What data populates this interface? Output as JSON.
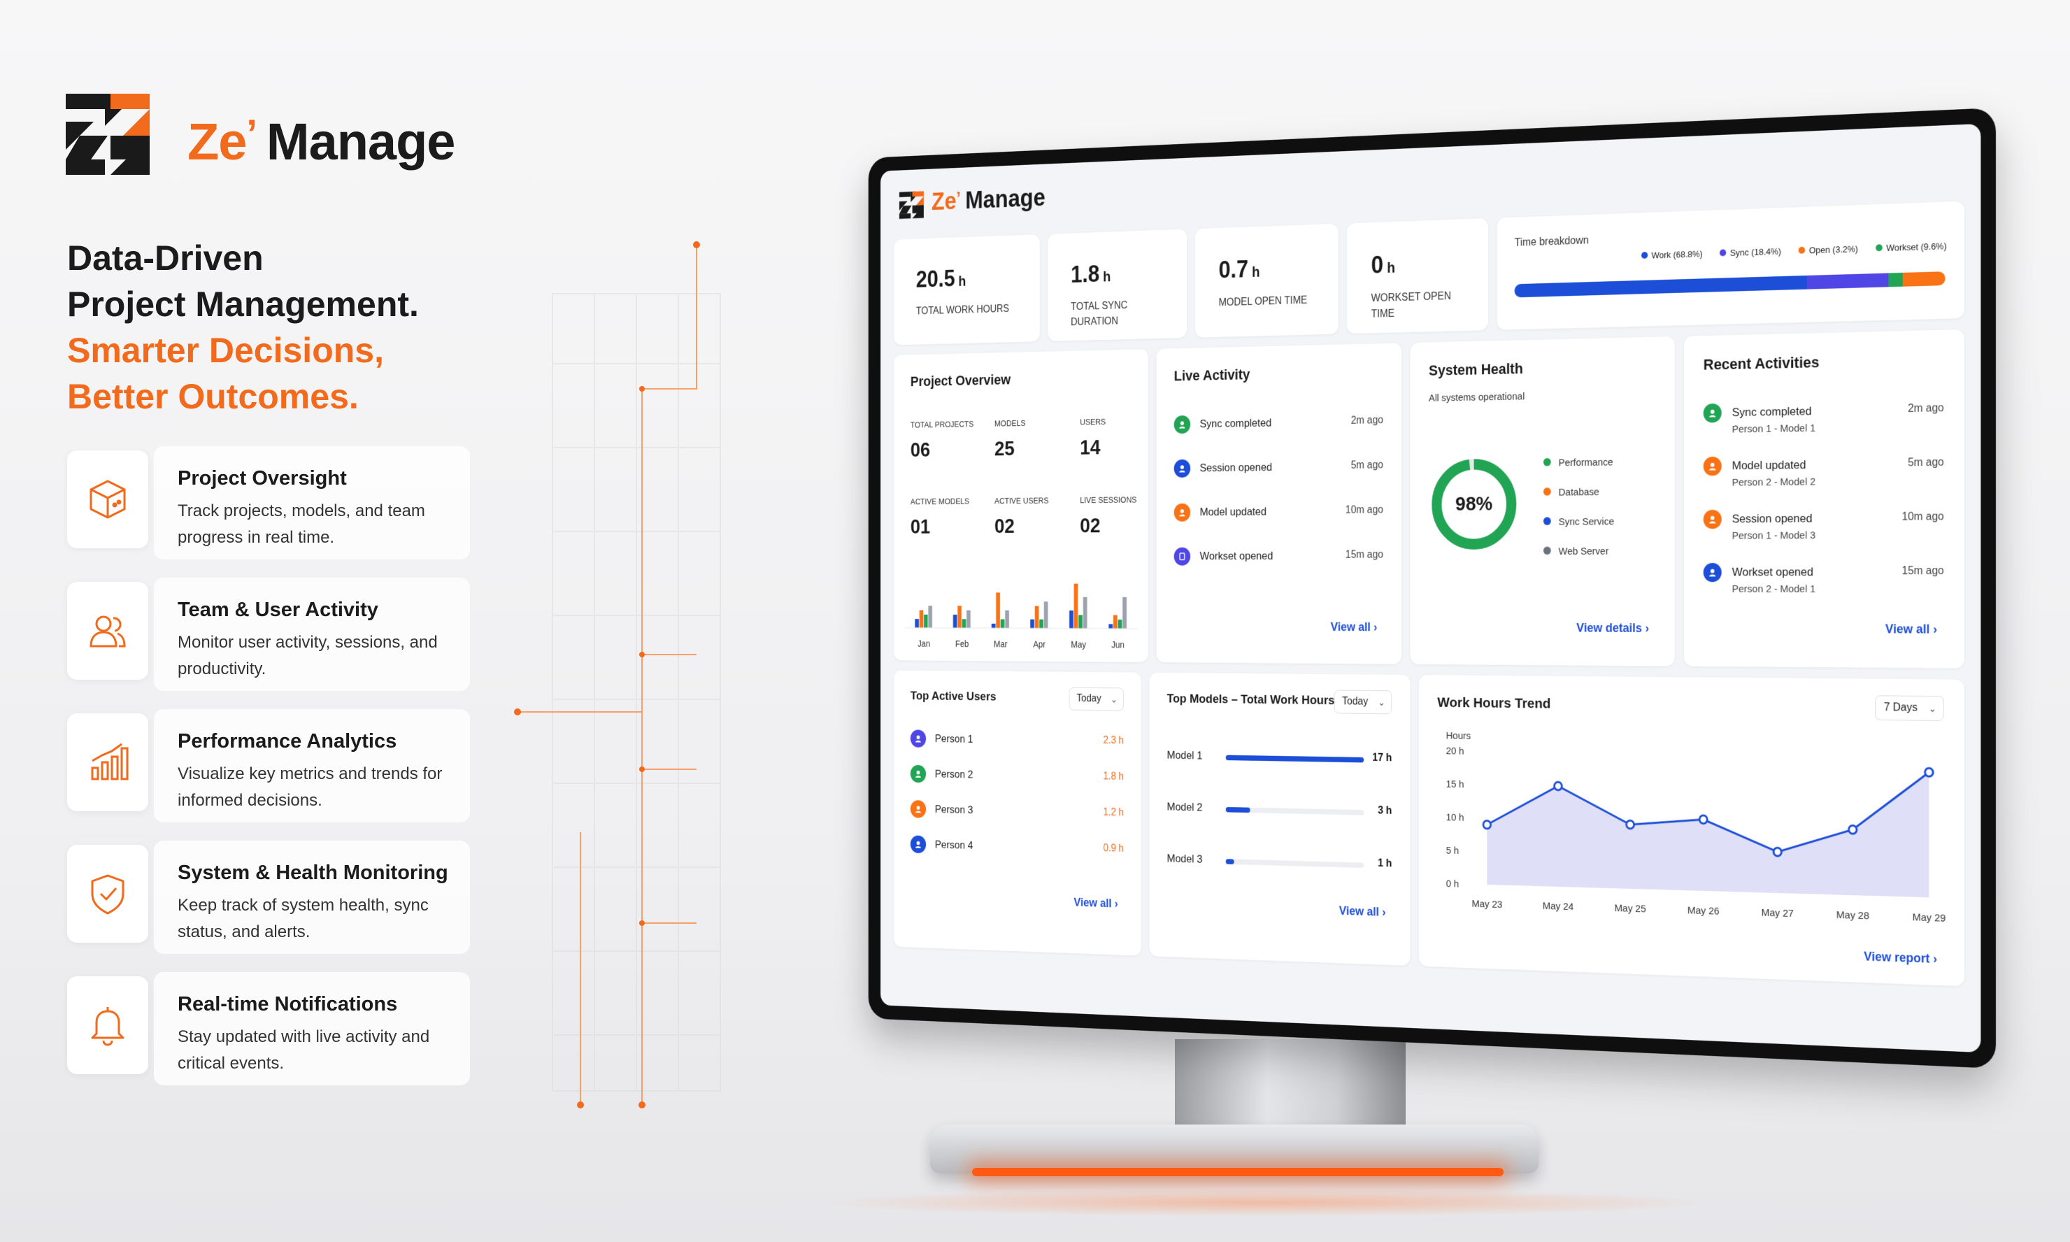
{
  "brand": {
    "ze": "Ze",
    "apostrophe": "’",
    "rest": "Manage",
    "accent": "#f26a1b"
  },
  "headline": {
    "line1": "Data-Driven",
    "line2": "Project Management.",
    "line3": "Smarter Decisions,",
    "line4": "Better Outcomes."
  },
  "features": [
    {
      "title": "Project Oversight",
      "desc": "Track projects, models, and team progress in real time.",
      "icon": "box-icon"
    },
    {
      "title": "Team & User Activity",
      "desc": "Monitor user activity, sessions, and productivity.",
      "icon": "users-icon"
    },
    {
      "title": "Performance Analytics",
      "desc": "Visualize key metrics and trends for informed decisions.",
      "icon": "bar-chart-icon"
    },
    {
      "title": "System & Health Monitoring",
      "desc": "Keep track of system health, sync status, and alerts.",
      "icon": "shield-check-icon"
    },
    {
      "title": "Real-time Notifications",
      "desc": "Stay updated with live activity and critical events.",
      "icon": "bell-icon"
    }
  ],
  "dashboard": {
    "stats": [
      {
        "value": "20.5",
        "unit": "h",
        "label": "Total Work Hours"
      },
      {
        "value": "1.8",
        "unit": "h",
        "label": "Total Sync Duration"
      },
      {
        "value": "0.7",
        "unit": "h",
        "label": "Model Open Time"
      },
      {
        "value": "0",
        "unit": "h",
        "label": "Workset Open Time"
      }
    ],
    "time_breakdown": {
      "title": "Time breakdown",
      "segments": [
        {
          "label": "Work (68.8%)",
          "pct": 68.8,
          "color": "#1d4ed8"
        },
        {
          "label": "Sync (18.4%)",
          "pct": 18.4,
          "color": "#4f46e5"
        },
        {
          "label": "Open (3.2%)",
          "pct": 3.2,
          "color": "#22a455"
        },
        {
          "label": "Workset (9.6%)",
          "pct": 9.6,
          "color": "#f97316"
        }
      ]
    },
    "project_overview": {
      "title": "Project Overview",
      "metrics": [
        {
          "label": "Total Projects",
          "value": "06"
        },
        {
          "label": "Models",
          "value": "25"
        },
        {
          "label": "Users",
          "value": "14"
        },
        {
          "label": "Active Models",
          "value": "01"
        },
        {
          "label": "Active Users",
          "value": "02"
        },
        {
          "label": "Live Sessions",
          "value": "02"
        }
      ],
      "chart_data": {
        "type": "bar",
        "categories": [
          "Jan",
          "Feb",
          "Mar",
          "Apr",
          "May",
          "Jun"
        ],
        "series": [
          {
            "color": "#1d4ed8",
            "values": [
              2,
              3,
              1,
              2,
              4,
              1
            ]
          },
          {
            "color": "#f97316",
            "values": [
              4,
              5,
              8,
              5,
              10,
              3
            ]
          },
          {
            "color": "#22a455",
            "values": [
              3,
              2,
              2,
              2,
              3,
              2
            ]
          },
          {
            "color": "#9ca3af",
            "values": [
              5,
              4,
              4,
              6,
              7,
              7
            ]
          }
        ]
      }
    },
    "live_activity": {
      "title": "Live Activity",
      "items": [
        {
          "text": "Sync completed",
          "time": "2m ago",
          "color": "#22a455"
        },
        {
          "text": "Session opened",
          "time": "5m ago",
          "color": "#1d4ed8"
        },
        {
          "text": "Model updated",
          "time": "10m ago",
          "color": "#f97316"
        },
        {
          "text": "Workset opened",
          "time": "15m ago",
          "color": "#4f46e5"
        }
      ],
      "link": "View all"
    },
    "system_health": {
      "title": "System Health",
      "subtitle": "All systems operational",
      "percent": "98%",
      "percent_value": 98,
      "legend": [
        {
          "label": "Performance",
          "color": "#22a455"
        },
        {
          "label": "Database",
          "color": "#f97316"
        },
        {
          "label": "Sync Service",
          "color": "#1d4ed8"
        },
        {
          "label": "Web Server",
          "color": "#6b7280"
        }
      ],
      "link": "View details"
    },
    "recent_activities": {
      "title": "Recent Activities",
      "items": [
        {
          "text": "Sync completed",
          "sub": "Person 1 - Model 1",
          "time": "2m ago",
          "color": "#22a455"
        },
        {
          "text": "Model updated",
          "sub": "Person 2 - Model 2",
          "time": "5m ago",
          "color": "#f97316"
        },
        {
          "text": "Session opened",
          "sub": "Person 1 - Model 3",
          "time": "10m ago",
          "color": "#f97316"
        },
        {
          "text": "Workset opened",
          "sub": "Person 2 - Model 1",
          "time": "15m ago",
          "color": "#1d4ed8"
        }
      ],
      "link": "View all"
    },
    "top_users": {
      "title": "Top Active Users",
      "filter": "Today",
      "items": [
        {
          "name": "Person 1",
          "value": "2.3 h",
          "color": "#4f46e5"
        },
        {
          "name": "Person 2",
          "value": "1.8 h",
          "color": "#22a455"
        },
        {
          "name": "Person 3",
          "value": "1.2 h",
          "color": "#f97316"
        },
        {
          "name": "Person 4",
          "value": "0.9 h",
          "color": "#1d4ed8"
        }
      ],
      "link": "View all"
    },
    "top_models": {
      "title": "Top Models – Total Work Hours",
      "filter": "Today",
      "items": [
        {
          "name": "Model 1",
          "value": "17 h",
          "hours": 17
        },
        {
          "name": "Model 2",
          "value": "3 h",
          "hours": 3
        },
        {
          "name": "Model 3",
          "value": "1 h",
          "hours": 1
        }
      ],
      "max_hours": 17,
      "link": "View all"
    },
    "work_hours_trend": {
      "title": "Work Hours Trend",
      "filter": "7 Days",
      "link": "View report",
      "chart_data": {
        "type": "area",
        "ylabel": "Hours",
        "yticks": [
          "20 h",
          "15 h",
          "10 h",
          "5 h",
          "0 h"
        ],
        "ylim": [
          0,
          20
        ],
        "categories": [
          "May 23",
          "May 24",
          "May 25",
          "May 26",
          "May 27",
          "May 28",
          "May 29"
        ],
        "values": [
          9,
          15,
          9.5,
          10.5,
          6,
          9.5,
          18
        ],
        "color": "#1d4ed8",
        "fill": "#dfe0f7"
      }
    }
  }
}
